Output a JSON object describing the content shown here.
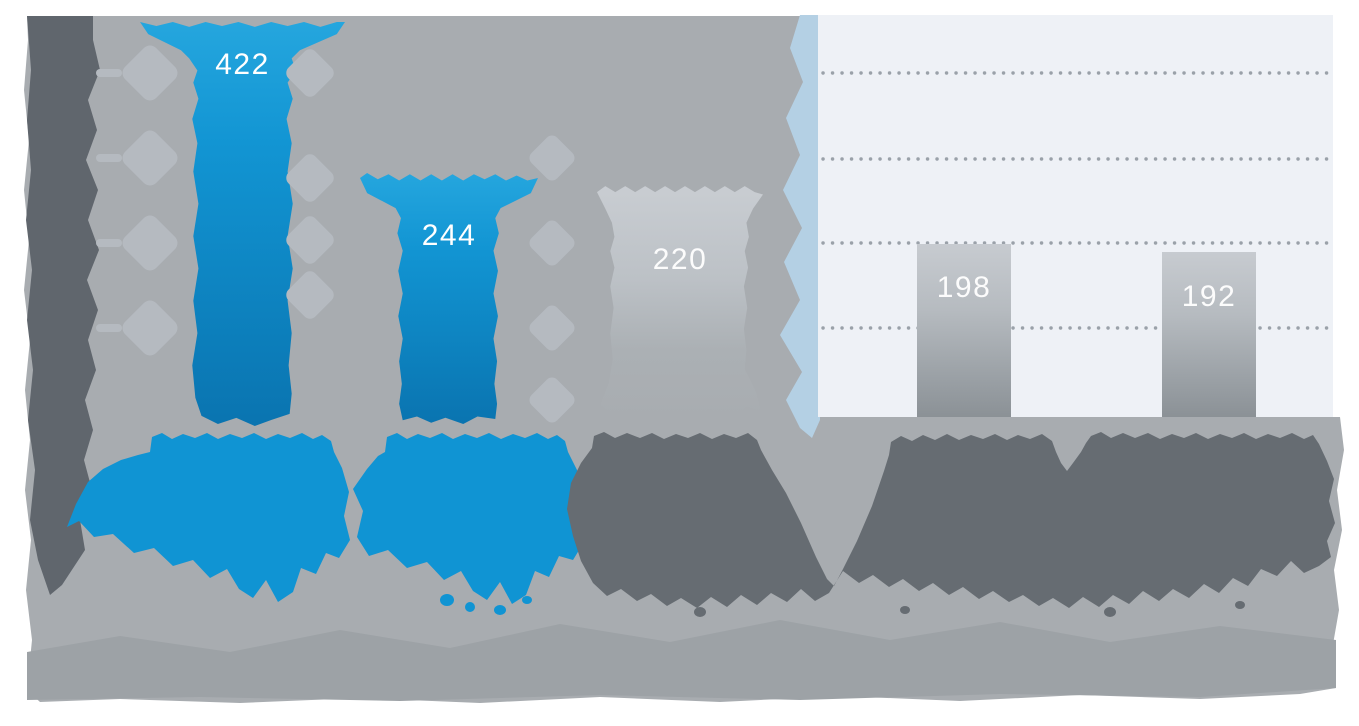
{
  "chart_data": {
    "type": "bar",
    "title": "",
    "xlabel": "",
    "ylabel": "",
    "categories": [
      "",
      "",
      "",
      "",
      ""
    ],
    "values": [
      422,
      244,
      220,
      198,
      192
    ],
    "value_labels": [
      "422",
      "244",
      "220",
      "198",
      "192"
    ],
    "bar_palette": [
      "blue",
      "blue",
      "silver",
      "silver",
      "silver"
    ],
    "ylim": [
      0,
      450
    ],
    "gridlines": {
      "style": "dotted",
      "count": 4,
      "region": "right highlight panel only"
    },
    "legend": "none",
    "annotations": "white value labels printed inside the top of each bar",
    "note": "category labels, axis labels and caption text are melted/illegible due to heavy image distortion"
  },
  "colors": {
    "page_background": "#ffffff",
    "chart_background_gray": "#a8acb0",
    "highlight_panel": "#eef1f6",
    "panel_divider_strip": "#b4d0e4",
    "blue_bar_top": "#25a6de",
    "blue_bar_bottom": "#0a74b0",
    "silver_bar_top": "#c7cbd0",
    "silver_bar_bottom": "#8b9196",
    "gridline_dot": "#9aa1a9",
    "dark_melt_shape": "#666c72",
    "dark_axis_strip": "#60666d",
    "blue_melt_shape": "#1094d3",
    "diamond_ornament": "#b5bac0",
    "bottom_band": "#9da2a6",
    "value_label_text": "#ffffff"
  }
}
